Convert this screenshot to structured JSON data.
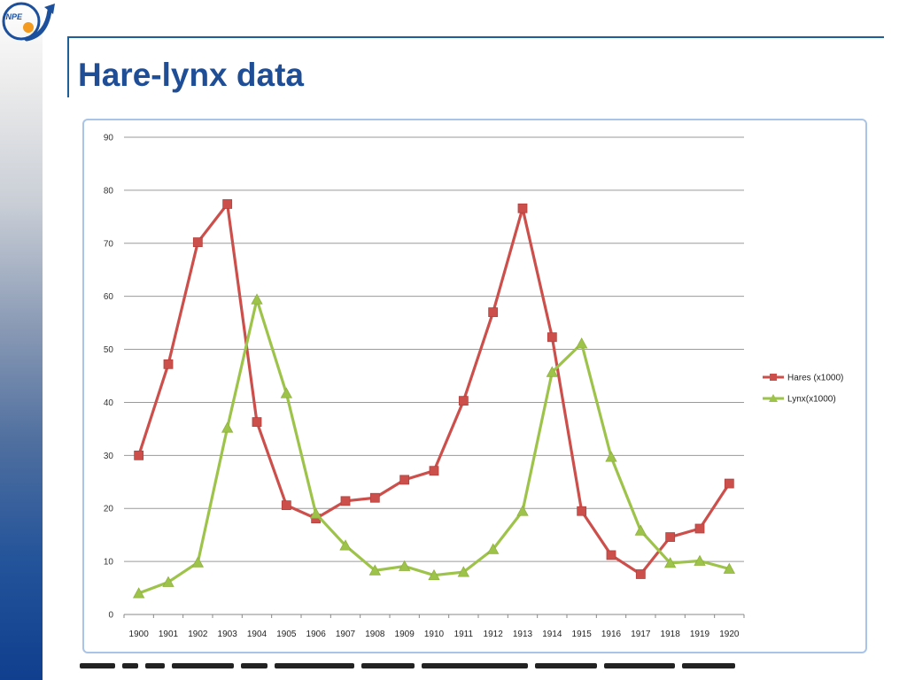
{
  "header": {
    "title": "Hare-lynx data"
  },
  "logo": {
    "text": "INPE",
    "colors": {
      "ring": "#1c4f9c",
      "dot": "#f39a1f"
    }
  },
  "chart_data": {
    "type": "line",
    "title": "",
    "xlabel": "",
    "ylabel": "",
    "categories": [
      "1900",
      "1901",
      "1902",
      "1903",
      "1904",
      "1905",
      "1906",
      "1907",
      "1908",
      "1909",
      "1910",
      "1911",
      "1912",
      "1913",
      "1914",
      "1915",
      "1916",
      "1917",
      "1918",
      "1919",
      "1920"
    ],
    "ylim": [
      0,
      90
    ],
    "yticks": [
      "0",
      "10",
      "20",
      "30",
      "40",
      "50",
      "60",
      "70",
      "80",
      "90"
    ],
    "grid": true,
    "legend_position": "right",
    "series": [
      {
        "name": "Hares (x1000)",
        "color": "#cc4f4b",
        "marker": "square",
        "values": [
          30,
          47.2,
          70.2,
          77.4,
          36.3,
          20.6,
          18.1,
          21.4,
          22,
          25.4,
          27.1,
          40.3,
          57,
          76.6,
          52.3,
          19.5,
          11.2,
          7.6,
          14.6,
          16.2,
          24.7
        ]
      },
      {
        "name": "Lynx(x1000)",
        "color": "#9ec34a",
        "marker": "triangle",
        "values": [
          4,
          6.1,
          9.8,
          35.2,
          59.4,
          41.7,
          19,
          13,
          8.3,
          9.1,
          7.4,
          8,
          12.3,
          19.5,
          45.7,
          51.1,
          29.7,
          15.8,
          9.7,
          10.1,
          8.6
        ]
      }
    ]
  }
}
